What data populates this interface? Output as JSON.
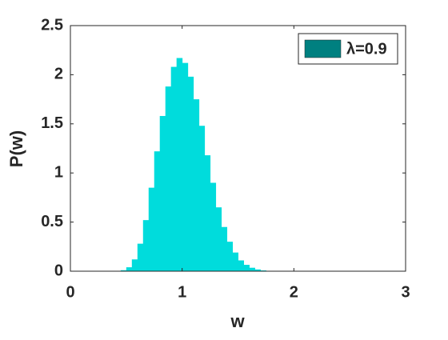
{
  "chart_data": {
    "type": "histogram",
    "xlabel": "w",
    "ylabel": "P(w)",
    "bins": [
      0.4,
      0.45,
      0.5,
      0.55,
      0.6,
      0.65,
      0.7,
      0.75,
      0.8,
      0.85,
      0.9,
      0.95,
      1.0,
      1.05,
      1.1,
      1.15,
      1.2,
      1.25,
      1.3,
      1.35,
      1.4,
      1.45,
      1.5,
      1.55,
      1.6,
      1.65,
      1.7,
      1.75,
      1.8,
      1.85,
      1.9
    ],
    "series": [
      {
        "name": "λ=0.9",
        "color": "#00dcdc",
        "legend_color": "#008080",
        "values": [
          0.0,
          0.01,
          0.04,
          0.12,
          0.28,
          0.52,
          0.85,
          1.22,
          1.58,
          1.88,
          2.08,
          2.17,
          2.12,
          1.98,
          1.75,
          1.48,
          1.18,
          0.9,
          0.65,
          0.45,
          0.3,
          0.19,
          0.11,
          0.065,
          0.035,
          0.018,
          0.008,
          0.004,
          0.002,
          0.001
        ]
      }
    ],
    "xlim": [
      0,
      3
    ],
    "xticks": [
      0,
      1,
      2,
      3
    ],
    "ylim": [
      0,
      2.5
    ],
    "yticks": [
      0,
      0.5,
      1,
      1.5,
      2,
      2.5
    ],
    "grid": false,
    "legend": "upper-right"
  }
}
